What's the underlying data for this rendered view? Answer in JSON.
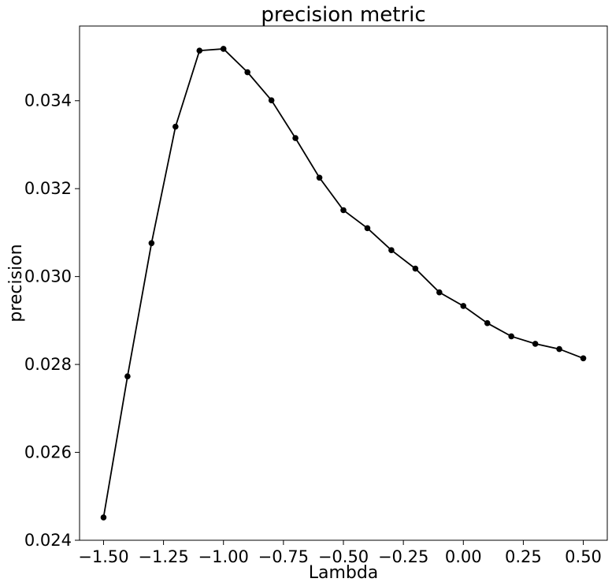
{
  "chart_data": {
    "type": "line",
    "title": "precision metric",
    "xlabel": "Lambda",
    "ylabel": "precision",
    "xlim": [
      -1.6,
      0.6
    ],
    "ylim": [
      0.024,
      0.0357
    ],
    "grid": false,
    "xticks": [
      -1.5,
      -1.25,
      -1.0,
      -0.75,
      -0.5,
      -0.25,
      0.0,
      0.25,
      0.5
    ],
    "xtick_labels": [
      "−1.50",
      "−1.25",
      "−1.00",
      "−0.75",
      "−0.50",
      "−0.25",
      "0.00",
      "0.25",
      "0.50"
    ],
    "yticks": [
      0.024,
      0.026,
      0.028,
      0.03,
      0.032,
      0.034
    ],
    "ytick_labels": [
      "0.024",
      "0.026",
      "0.028",
      "0.030",
      "0.032",
      "0.034"
    ],
    "series": [
      {
        "color": "#000000",
        "marker": "circle",
        "x": [
          -1.5,
          -1.4,
          -1.3,
          -1.2,
          -1.1,
          -1.0,
          -0.9,
          -0.8,
          -0.7,
          -0.6,
          -0.5,
          -0.4,
          -0.3,
          -0.2,
          -0.1,
          0.0,
          0.1,
          0.2,
          0.3,
          0.4,
          0.5
        ],
        "y": [
          0.02452,
          0.02773,
          0.03076,
          0.03341,
          0.03514,
          0.03518,
          0.03465,
          0.03401,
          0.03315,
          0.03225,
          0.03151,
          0.0311,
          0.0306,
          0.03018,
          0.02964,
          0.02933,
          0.02894,
          0.02864,
          0.02847,
          0.02835,
          0.02814
        ]
      }
    ]
  }
}
